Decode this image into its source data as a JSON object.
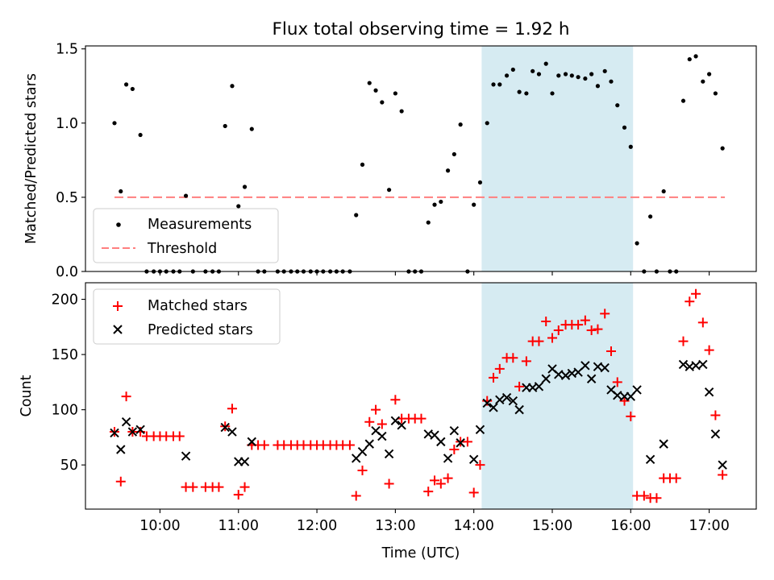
{
  "title": "Flux total observing time = 1.92 h",
  "chart_data": [
    {
      "type": "scatter",
      "ylabel": "Matched/Predicted stars",
      "xlabel": "",
      "xlim": [
        9.05,
        17.6
      ],
      "ylim": [
        0,
        1.52
      ],
      "yticks": [
        0,
        0.5,
        1.0,
        1.5
      ],
      "ytick_labels": [
        "0.0",
        "0.5",
        "1.0",
        "1.5"
      ],
      "shaded_region": [
        14.1,
        16.03
      ],
      "legend": [
        {
          "label": "Measurements",
          "marker": "dot",
          "color": "#000000"
        },
        {
          "label": "Threshold",
          "marker": "dashed-line",
          "color": "#ff7f7f"
        }
      ],
      "legend_loc": "lower-left",
      "threshold": {
        "x": [
          9.42,
          17.2
        ],
        "y": 0.5
      },
      "series": [
        {
          "name": "Measurements",
          "points": [
            [
              9.42,
              1.0
            ],
            [
              9.5,
              0.54
            ],
            [
              9.57,
              1.26
            ],
            [
              9.65,
              1.23
            ],
            [
              9.75,
              0.92
            ],
            [
              9.83,
              0
            ],
            [
              9.92,
              0
            ],
            [
              10.0,
              0
            ],
            [
              10.08,
              0
            ],
            [
              10.17,
              0
            ],
            [
              10.25,
              0
            ],
            [
              10.33,
              0.51
            ],
            [
              10.42,
              0
            ],
            [
              10.58,
              0
            ],
            [
              10.67,
              0
            ],
            [
              10.75,
              0
            ],
            [
              10.83,
              0.98
            ],
            [
              10.92,
              1.25
            ],
            [
              11.0,
              0.44
            ],
            [
              11.08,
              0.57
            ],
            [
              11.17,
              0.96
            ],
            [
              11.25,
              0
            ],
            [
              11.33,
              0
            ],
            [
              11.5,
              0
            ],
            [
              11.58,
              0
            ],
            [
              11.67,
              0
            ],
            [
              11.75,
              0
            ],
            [
              11.83,
              0
            ],
            [
              11.92,
              0
            ],
            [
              12.0,
              0
            ],
            [
              12.08,
              0
            ],
            [
              12.17,
              0
            ],
            [
              12.25,
              0
            ],
            [
              12.33,
              0
            ],
            [
              12.42,
              0
            ],
            [
              12.5,
              0.38
            ],
            [
              12.58,
              0.72
            ],
            [
              12.67,
              1.27
            ],
            [
              12.75,
              1.22
            ],
            [
              12.83,
              1.14
            ],
            [
              12.92,
              0.55
            ],
            [
              13.0,
              1.2
            ],
            [
              13.08,
              1.08
            ],
            [
              13.17,
              0
            ],
            [
              13.25,
              0
            ],
            [
              13.33,
              0
            ],
            [
              13.42,
              0.33
            ],
            [
              13.5,
              0.45
            ],
            [
              13.58,
              0.47
            ],
            [
              13.67,
              0.68
            ],
            [
              13.75,
              0.79
            ],
            [
              13.83,
              0.99
            ],
            [
              13.92,
              0
            ],
            [
              14.0,
              0.45
            ],
            [
              14.08,
              0.6
            ],
            [
              14.17,
              1.0
            ],
            [
              14.25,
              1.26
            ],
            [
              14.33,
              1.26
            ],
            [
              14.42,
              1.32
            ],
            [
              14.5,
              1.36
            ],
            [
              14.58,
              1.21
            ],
            [
              14.67,
              1.2
            ],
            [
              14.75,
              1.35
            ],
            [
              14.83,
              1.33
            ],
            [
              14.92,
              1.4
            ],
            [
              15.0,
              1.2
            ],
            [
              15.08,
              1.32
            ],
            [
              15.17,
              1.33
            ],
            [
              15.25,
              1.32
            ],
            [
              15.33,
              1.31
            ],
            [
              15.42,
              1.3
            ],
            [
              15.5,
              1.33
            ],
            [
              15.58,
              1.25
            ],
            [
              15.67,
              1.35
            ],
            [
              15.75,
              1.28
            ],
            [
              15.83,
              1.12
            ],
            [
              15.92,
              0.97
            ],
            [
              16.0,
              0.84
            ],
            [
              16.08,
              0.19
            ],
            [
              16.17,
              0
            ],
            [
              16.25,
              0.37
            ],
            [
              16.33,
              0
            ],
            [
              16.42,
              0.54
            ],
            [
              16.5,
              0
            ],
            [
              16.58,
              0
            ],
            [
              16.67,
              1.15
            ],
            [
              16.75,
              1.43
            ],
            [
              16.83,
              1.45
            ],
            [
              16.92,
              1.28
            ],
            [
              17.0,
              1.33
            ],
            [
              17.08,
              1.2
            ],
            [
              17.17,
              0.83
            ]
          ]
        }
      ]
    },
    {
      "type": "scatter",
      "ylabel": "Count",
      "xlabel": "Time (UTC)",
      "xlim": [
        9.05,
        17.6
      ],
      "ylim": [
        10,
        215
      ],
      "yticks": [
        50,
        100,
        150,
        200
      ],
      "ytick_labels": [
        "50",
        "100",
        "150",
        "200"
      ],
      "xticks": [
        10,
        11,
        12,
        13,
        14,
        15,
        16,
        17
      ],
      "xtick_labels": [
        "10:00",
        "11:00",
        "12:00",
        "13:00",
        "14:00",
        "15:00",
        "16:00",
        "17:00"
      ],
      "shaded_region": [
        14.1,
        16.03
      ],
      "legend": [
        {
          "label": "Matched stars",
          "marker": "plus",
          "color": "#ff0000"
        },
        {
          "label": "Predicted stars",
          "marker": "x",
          "color": "#000000"
        }
      ],
      "legend_loc": "upper-left",
      "series": [
        {
          "name": "Matched stars",
          "marker": "plus",
          "color": "#ff0000",
          "points": [
            [
              9.42,
              80
            ],
            [
              9.5,
              35
            ],
            [
              9.57,
              112
            ],
            [
              9.65,
              80
            ],
            [
              9.75,
              80
            ],
            [
              9.83,
              76
            ],
            [
              9.92,
              76
            ],
            [
              10.0,
              76
            ],
            [
              10.08,
              76
            ],
            [
              10.17,
              76
            ],
            [
              10.25,
              76
            ],
            [
              10.33,
              30
            ],
            [
              10.42,
              30
            ],
            [
              10.58,
              30
            ],
            [
              10.67,
              30
            ],
            [
              10.75,
              30
            ],
            [
              10.83,
              85
            ],
            [
              10.92,
              101
            ],
            [
              11.0,
              23
            ],
            [
              11.08,
              30
            ],
            [
              11.17,
              68
            ],
            [
              11.25,
              68
            ],
            [
              11.33,
              68
            ],
            [
              11.5,
              68
            ],
            [
              11.58,
              68
            ],
            [
              11.67,
              68
            ],
            [
              11.75,
              68
            ],
            [
              11.83,
              68
            ],
            [
              11.92,
              68
            ],
            [
              12.0,
              68
            ],
            [
              12.08,
              68
            ],
            [
              12.17,
              68
            ],
            [
              12.25,
              68
            ],
            [
              12.33,
              68
            ],
            [
              12.42,
              68
            ],
            [
              12.5,
              22
            ],
            [
              12.58,
              45
            ],
            [
              12.67,
              89
            ],
            [
              12.75,
              100
            ],
            [
              12.83,
              87
            ],
            [
              12.92,
              33
            ],
            [
              13.0,
              109
            ],
            [
              13.08,
              92
            ],
            [
              13.17,
              92
            ],
            [
              13.25,
              92
            ],
            [
              13.33,
              92
            ],
            [
              13.42,
              26
            ],
            [
              13.5,
              36
            ],
            [
              13.58,
              33
            ],
            [
              13.67,
              38
            ],
            [
              13.75,
              64
            ],
            [
              13.83,
              71
            ],
            [
              13.92,
              71
            ],
            [
              14.0,
              25
            ],
            [
              14.08,
              50
            ],
            [
              14.17,
              108
            ],
            [
              14.25,
              129
            ],
            [
              14.33,
              137
            ],
            [
              14.42,
              147
            ],
            [
              14.5,
              147
            ],
            [
              14.58,
              121
            ],
            [
              14.67,
              144
            ],
            [
              14.75,
              162
            ],
            [
              14.83,
              162
            ],
            [
              14.92,
              180
            ],
            [
              15.0,
              165
            ],
            [
              15.08,
              172
            ],
            [
              15.17,
              177
            ],
            [
              15.25,
              177
            ],
            [
              15.33,
              177
            ],
            [
              15.42,
              181
            ],
            [
              15.5,
              172
            ],
            [
              15.58,
              173
            ],
            [
              15.67,
              187
            ],
            [
              15.75,
              153
            ],
            [
              15.83,
              125
            ],
            [
              15.92,
              108
            ],
            [
              16.0,
              94
            ],
            [
              16.08,
              22
            ],
            [
              16.17,
              22
            ],
            [
              16.25,
              20
            ],
            [
              16.33,
              20
            ],
            [
              16.42,
              38
            ],
            [
              16.5,
              38
            ],
            [
              16.58,
              38
            ],
            [
              16.67,
              162
            ],
            [
              16.75,
              198
            ],
            [
              16.83,
              205
            ],
            [
              16.92,
              179
            ],
            [
              17.0,
              154
            ],
            [
              17.08,
              95
            ],
            [
              17.17,
              41
            ]
          ]
        },
        {
          "name": "Predicted stars",
          "marker": "x",
          "color": "#000000",
          "points": [
            [
              9.42,
              79
            ],
            [
              9.5,
              64
            ],
            [
              9.57,
              89
            ],
            [
              9.65,
              80
            ],
            [
              9.75,
              82
            ],
            [
              10.33,
              58
            ],
            [
              10.83,
              84
            ],
            [
              10.92,
              80
            ],
            [
              11.0,
              53
            ],
            [
              11.08,
              53
            ],
            [
              11.17,
              71
            ],
            [
              12.5,
              56
            ],
            [
              12.58,
              62
            ],
            [
              12.67,
              69
            ],
            [
              12.75,
              81
            ],
            [
              12.83,
              76
            ],
            [
              12.92,
              60
            ],
            [
              13.0,
              90
            ],
            [
              13.08,
              86
            ],
            [
              13.42,
              78
            ],
            [
              13.5,
              77
            ],
            [
              13.58,
              71
            ],
            [
              13.67,
              56
            ],
            [
              13.75,
              81
            ],
            [
              13.83,
              70
            ],
            [
              14.0,
              55
            ],
            [
              14.08,
              82
            ],
            [
              14.17,
              106
            ],
            [
              14.25,
              102
            ],
            [
              14.33,
              109
            ],
            [
              14.42,
              111
            ],
            [
              14.5,
              108
            ],
            [
              14.58,
              100
            ],
            [
              14.67,
              120
            ],
            [
              14.75,
              120
            ],
            [
              14.83,
              121
            ],
            [
              14.92,
              128
            ],
            [
              15.0,
              137
            ],
            [
              15.08,
              132
            ],
            [
              15.17,
              131
            ],
            [
              15.25,
              133
            ],
            [
              15.33,
              134
            ],
            [
              15.42,
              140
            ],
            [
              15.5,
              128
            ],
            [
              15.58,
              139
            ],
            [
              15.67,
              138
            ],
            [
              15.75,
              118
            ],
            [
              15.83,
              113
            ],
            [
              15.92,
              112
            ],
            [
              16.0,
              112
            ],
            [
              16.08,
              118
            ],
            [
              16.25,
              55
            ],
            [
              16.42,
              69
            ],
            [
              16.67,
              141
            ],
            [
              16.75,
              139
            ],
            [
              16.83,
              140
            ],
            [
              16.92,
              141
            ],
            [
              17.0,
              116
            ],
            [
              17.08,
              78
            ],
            [
              17.17,
              50
            ]
          ]
        }
      ]
    }
  ]
}
